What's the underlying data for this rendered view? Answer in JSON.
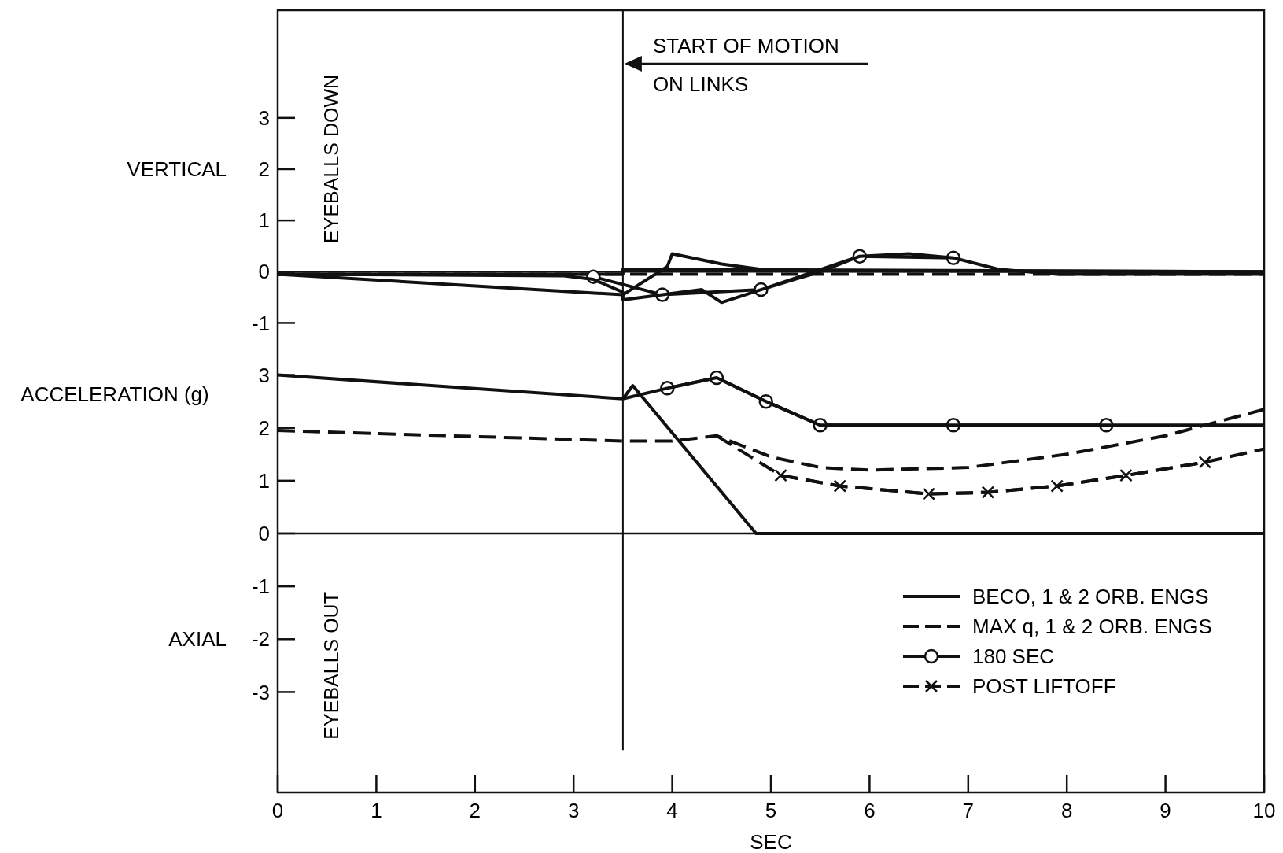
{
  "chart_data": [
    {
      "type": "line",
      "xlim": [
        0,
        10
      ],
      "ylim": [
        -1.5,
        5.1
      ],
      "yticks": [
        -1,
        0,
        1,
        2,
        3
      ],
      "tick_labels": "y",
      "annotations": [
        "VERTICAL",
        "EYEBALLS DOWN"
      ],
      "ref_lines": [
        {
          "axis": "x",
          "value": 3.5,
          "label": "START OF MOTION\nON LINKS"
        },
        {
          "axis": "y",
          "value": 0
        }
      ],
      "series": [
        {
          "color": "#111111",
          "line_style": "solid",
          "marker": "none",
          "x": [
            0,
            3.5,
            3.5,
            10
          ],
          "values": [
            -0.05,
            -0.05,
            0.05,
            0
          ]
        },
        {
          "color": "#111111",
          "line_style": "dashed",
          "marker": "none",
          "x": [
            0,
            3.5,
            6,
            10
          ],
          "values": [
            -0.05,
            -0.05,
            -0.05,
            -0.05
          ]
        },
        {
          "color": "#111111",
          "line_style": "solid",
          "marker": "circle",
          "x": [
            3.2,
            3.9,
            4.9,
            5.9,
            6.85
          ],
          "values": [
            -0.1,
            -0.45,
            -0.35,
            0.3,
            0.27
          ]
        },
        {
          "color": "#111111",
          "line_style": "solid",
          "marker": "none",
          "x": [
            0,
            2.9,
            3.2,
            3.5,
            3.5,
            3.9,
            4.3,
            4.5,
            4.9,
            5.5,
            5.9,
            6.4,
            6.85,
            7.3,
            7.9,
            10
          ],
          "values": [
            -0.05,
            -0.08,
            -0.15,
            -0.4,
            -0.55,
            -0.45,
            -0.35,
            -0.6,
            -0.35,
            0,
            0.3,
            0.35,
            0.27,
            0.05,
            -0.05,
            -0.05
          ]
        },
        {
          "color": "#111111",
          "line_style": "solid",
          "marker": "none",
          "x": [
            0,
            3.5,
            3.95,
            4.0,
            4.5,
            5,
            10
          ],
          "values": [
            -0.05,
            -0.45,
            0.1,
            0.35,
            0.15,
            0.02,
            0
          ]
        }
      ]
    },
    {
      "type": "line",
      "xlim": [
        0,
        10
      ],
      "xticks": [
        0,
        1,
        2,
        3,
        4,
        5,
        6,
        7,
        8,
        9,
        10
      ],
      "ylim": [
        -4.9,
        3.5
      ],
      "yticks": [
        -3,
        -2,
        -1,
        0,
        1,
        2,
        3
      ],
      "xlabel": "SEC",
      "ylabel": "ACCELERATION (g)",
      "legend": "bottom right",
      "annotations": [
        "AXIAL",
        "EYEBALLS OUT"
      ],
      "ref_lines": [
        {
          "axis": "x",
          "value": 3.5
        },
        {
          "axis": "y",
          "value": 0
        }
      ],
      "series": [
        {
          "name": "BECO, 1 & 2 ORB. ENGS",
          "color": "#111111",
          "line_style": "solid",
          "marker": "none",
          "x": [
            0,
            3.5,
            3.6,
            4.85,
            10
          ],
          "values": [
            3.0,
            2.55,
            2.8,
            0,
            0
          ]
        },
        {
          "name": "MAX q, 1 & 2 ORB. ENGS",
          "color": "#111111",
          "line_style": "dashed",
          "marker": "none",
          "x": [
            0,
            3.5,
            4,
            4.45,
            5,
            5.5,
            6,
            7,
            8,
            9,
            10
          ],
          "values": [
            1.95,
            1.75,
            1.75,
            1.85,
            1.45,
            1.25,
            1.2,
            1.25,
            1.5,
            1.85,
            2.35
          ]
        },
        {
          "name": "180 SEC",
          "color": "#111111",
          "line_style": "solid",
          "marker": "circle",
          "x": [
            3.95,
            4.45,
            4.95,
            5.5,
            6.85,
            8.4
          ],
          "values": [
            2.75,
            2.95,
            2.5,
            2.05,
            2.05,
            2.05
          ]
        },
        {
          "color": "#111111",
          "line_style": "solid",
          "marker": "none",
          "x": [
            3.5,
            3.95,
            4.45,
            4.95,
            5.5,
            6.85,
            8.4,
            10
          ],
          "values": [
            2.55,
            2.75,
            2.95,
            2.5,
            2.05,
            2.05,
            2.05,
            2.05
          ]
        },
        {
          "name": "POST LIFTOFF",
          "color": "#111111",
          "line_style": "dashed",
          "marker": "cross",
          "x": [
            5.1,
            5.7,
            6.6,
            7.2,
            7.9,
            8.6,
            9.4
          ],
          "values": [
            1.1,
            0.9,
            0.75,
            0.78,
            0.9,
            1.1,
            1.35
          ]
        },
        {
          "color": "#111111",
          "line_style": "dashed",
          "marker": "none",
          "x": [
            4.45,
            5.1,
            5.7,
            6.6,
            7.2,
            7.9,
            8.6,
            9.4,
            10
          ],
          "values": [
            1.85,
            1.1,
            0.9,
            0.75,
            0.78,
            0.9,
            1.1,
            1.35,
            1.6
          ]
        }
      ]
    }
  ]
}
